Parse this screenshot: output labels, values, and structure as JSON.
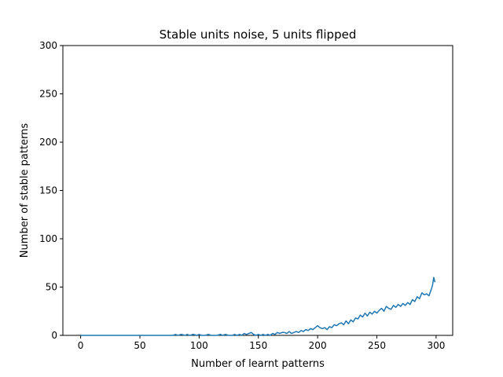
{
  "chart_data": {
    "type": "line",
    "title": "Stable units noise, 5 units flipped",
    "xlabel": "Number of learnt patterns",
    "ylabel": "Number of stable patterns",
    "xlim": [
      -15,
      314
    ],
    "ylim": [
      0,
      300
    ],
    "xticks": [
      0,
      50,
      100,
      150,
      200,
      250,
      300
    ],
    "yticks": [
      0,
      50,
      100,
      150,
      200,
      250,
      300
    ],
    "xtick_labels": [
      "0",
      "50",
      "100",
      "150",
      "200",
      "250",
      "300"
    ],
    "ytick_labels": [
      "0",
      "50",
      "100",
      "150",
      "200",
      "250",
      "300"
    ],
    "grid": false,
    "line_color": "#1f77b4",
    "series": [
      {
        "x": [
          0,
          10,
          20,
          30,
          40,
          50,
          60,
          70,
          78,
          80,
          82,
          85,
          88,
          90,
          92,
          95,
          98,
          100,
          102,
          105,
          108,
          110,
          115,
          118,
          120,
          122,
          125,
          128,
          130,
          132,
          134,
          136,
          138,
          140,
          142,
          144,
          146,
          148,
          150,
          152,
          154,
          156,
          158,
          160,
          162,
          164,
          166,
          168,
          170,
          172,
          174,
          176,
          178,
          180,
          182,
          184,
          186,
          188,
          190,
          192,
          194,
          196,
          198,
          200,
          202,
          204,
          206,
          208,
          210,
          212,
          214,
          216,
          218,
          220,
          222,
          224,
          226,
          228,
          230,
          232,
          234,
          236,
          238,
          240,
          242,
          244,
          246,
          248,
          250,
          252,
          254,
          256,
          258,
          260,
          262,
          264,
          266,
          268,
          270,
          272,
          274,
          276,
          278,
          280,
          282,
          284,
          286,
          288,
          290,
          292,
          294,
          296,
          297,
          298,
          299
        ],
        "y": [
          0,
          0,
          0,
          0,
          0,
          0,
          0,
          0,
          0,
          1,
          0,
          1,
          0,
          1,
          0,
          1,
          0,
          1,
          0,
          0,
          1,
          0,
          0,
          1,
          0,
          1,
          0,
          0,
          1,
          0,
          1,
          0,
          2,
          1,
          2,
          3,
          1,
          0,
          1,
          0,
          1,
          0,
          1,
          0,
          2,
          1,
          3,
          2,
          3,
          3,
          2,
          4,
          2,
          3,
          4,
          3,
          5,
          4,
          6,
          5,
          7,
          6,
          8,
          10,
          8,
          7,
          8,
          6,
          9,
          8,
          11,
          10,
          12,
          13,
          11,
          15,
          12,
          16,
          14,
          18,
          17,
          21,
          19,
          23,
          20,
          24,
          22,
          25,
          23,
          26,
          28,
          25,
          30,
          28,
          27,
          31,
          29,
          32,
          30,
          33,
          31,
          34,
          32,
          37,
          35,
          40,
          38,
          44,
          42,
          43,
          41,
          48,
          52,
          60,
          55
        ]
      }
    ]
  }
}
